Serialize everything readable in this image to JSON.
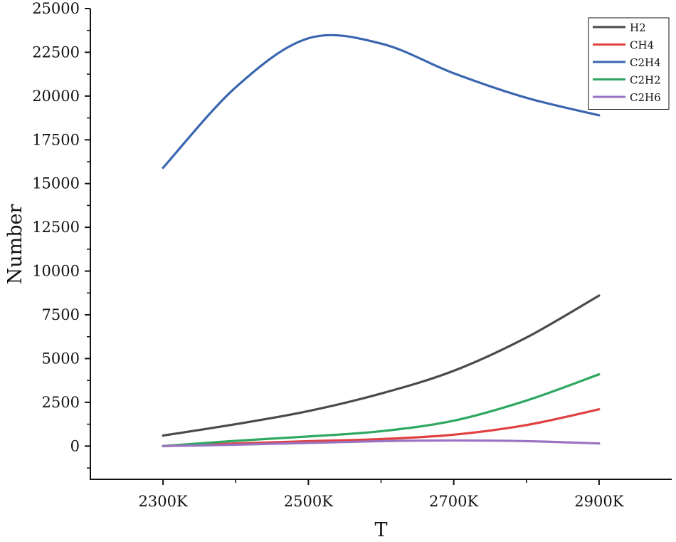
{
  "chart_data": {
    "type": "line",
    "title": "",
    "xlabel": "T",
    "ylabel": "Number",
    "x_unit_suffix": "K",
    "x": [
      2300,
      2400,
      2500,
      2600,
      2700,
      2800,
      2900
    ],
    "x_ticks": [
      2300,
      2500,
      2700,
      2900
    ],
    "x_tick_labels": [
      "2300K",
      "2500K",
      "2700K",
      "2900K"
    ],
    "xlim": [
      2200,
      3000
    ],
    "ylim": [
      -1900,
      25000
    ],
    "y_ticks": [
      0,
      2500,
      5000,
      7500,
      10000,
      12500,
      15000,
      17500,
      20000,
      22500,
      25000
    ],
    "y_tick_labels": [
      "0",
      "2500",
      "5000",
      "7500",
      "10000",
      "12500",
      "15000",
      "17500",
      "20000",
      "22500",
      "25000"
    ],
    "grid": false,
    "legend_position": "top-right",
    "series": [
      {
        "name": "H2",
        "color": "#4a4a4a",
        "values": [
          600,
          1250,
          2000,
          3000,
          4300,
          6200,
          8600
        ]
      },
      {
        "name": "CH4",
        "color": "#e04040",
        "values": [
          0,
          150,
          280,
          400,
          650,
          1200,
          2100
        ]
      },
      {
        "name": "C2H4",
        "color": "#3a66b0",
        "values": [
          15900,
          20500,
          23300,
          23000,
          21300,
          19900,
          18900
        ]
      },
      {
        "name": "C2H2",
        "color": "#2ea860",
        "values": [
          0,
          300,
          550,
          850,
          1450,
          2600,
          4100
        ]
      },
      {
        "name": "C2H6",
        "color": "#9a72c0",
        "values": [
          0,
          80,
          180,
          280,
          320,
          280,
          150
        ]
      }
    ]
  }
}
